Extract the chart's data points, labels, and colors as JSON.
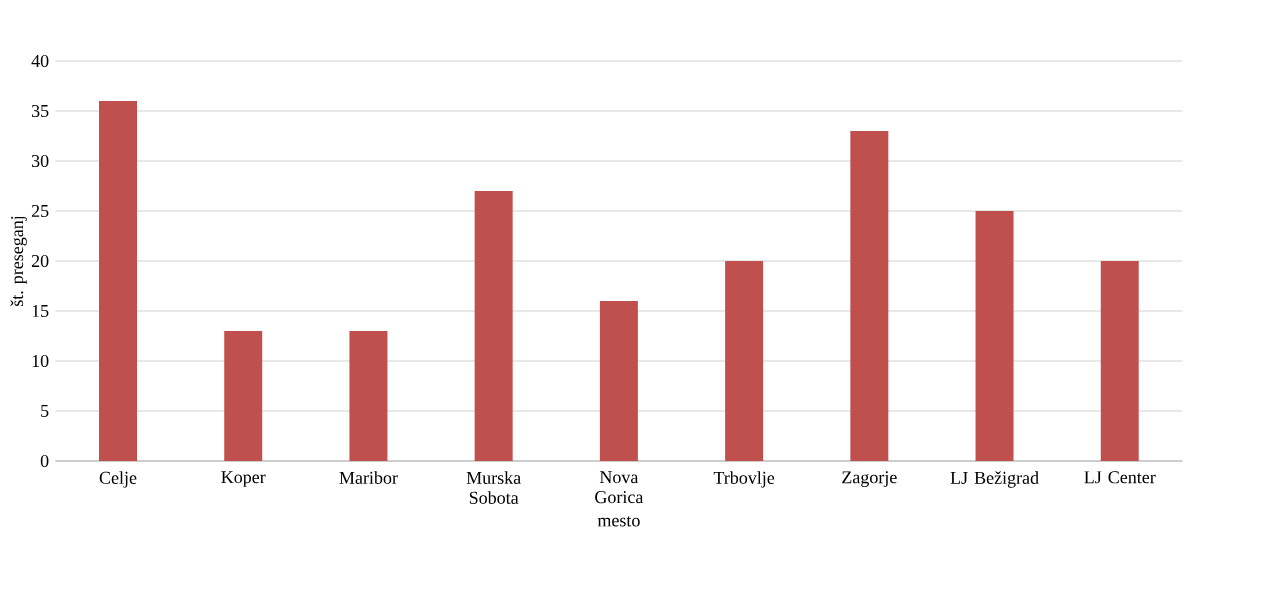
{
  "chart_data": {
    "type": "bar",
    "xlabel": "mesto",
    "ylabel": "št. preseganj",
    "categories": [
      "Celje",
      "Koper",
      "Maribor",
      "Murska Sobota",
      "Nova Gorica",
      "Trbovlje",
      "Zagorje",
      "LJ Bežigrad",
      "LJ Center"
    ],
    "values": [
      36,
      13,
      13,
      27,
      16,
      20,
      33,
      25,
      20
    ],
    "color": "#c0504d",
    "ylim": [
      0,
      40
    ],
    "yticks": [
      0,
      5,
      10,
      15,
      20,
      25,
      30,
      35,
      40
    ],
    "grid": "y"
  }
}
